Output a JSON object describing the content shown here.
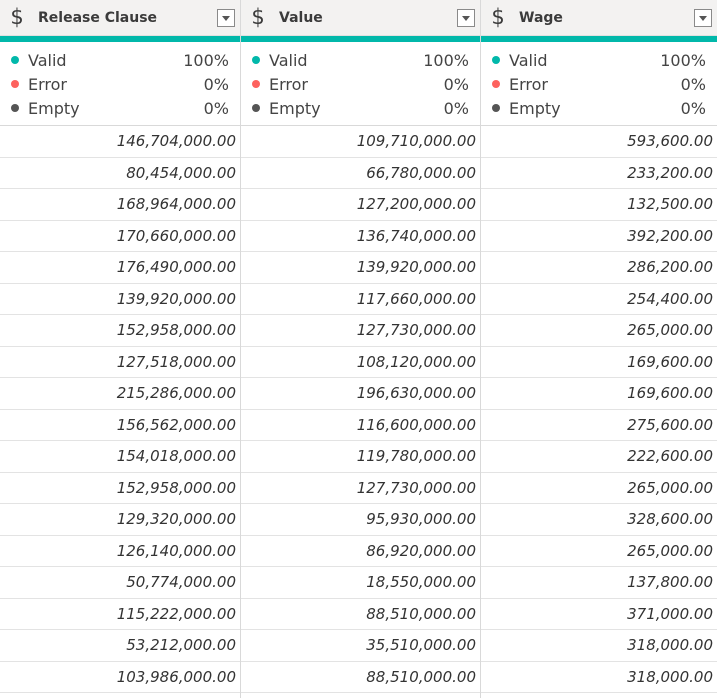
{
  "quality_colors": {
    "valid": "#01b8aa",
    "error": "#fd625e",
    "empty": "#555555"
  },
  "columns": [
    {
      "icon": "$",
      "icon_name": "currency-icon",
      "title": "Release Clause",
      "quality": {
        "valid_label": "Valid",
        "valid_pct": "100%",
        "error_label": "Error",
        "error_pct": "0%",
        "empty_label": "Empty",
        "empty_pct": "0%"
      },
      "rows": [
        "146,704,000.00",
        "80,454,000.00",
        "168,964,000.00",
        "170,660,000.00",
        "176,490,000.00",
        "139,920,000.00",
        "152,958,000.00",
        "127,518,000.00",
        "215,286,000.00",
        "156,562,000.00",
        "154,018,000.00",
        "152,958,000.00",
        "129,320,000.00",
        "126,140,000.00",
        "50,774,000.00",
        "115,222,000.00",
        "53,212,000.00",
        "103,986,000.00"
      ]
    },
    {
      "icon": "$",
      "icon_name": "currency-icon",
      "title": "Value",
      "quality": {
        "valid_label": "Valid",
        "valid_pct": "100%",
        "error_label": "Error",
        "error_pct": "0%",
        "empty_label": "Empty",
        "empty_pct": "0%"
      },
      "rows": [
        "109,710,000.00",
        "66,780,000.00",
        "127,200,000.00",
        "136,740,000.00",
        "139,920,000.00",
        "117,660,000.00",
        "127,730,000.00",
        "108,120,000.00",
        "196,630,000.00",
        "116,600,000.00",
        "119,780,000.00",
        "127,730,000.00",
        "95,930,000.00",
        "86,920,000.00",
        "18,550,000.00",
        "88,510,000.00",
        "35,510,000.00",
        "88,510,000.00"
      ]
    },
    {
      "icon": "$",
      "icon_name": "currency-icon",
      "title": "Wage",
      "quality": {
        "valid_label": "Valid",
        "valid_pct": "100%",
        "error_label": "Error",
        "error_pct": "0%",
        "empty_label": "Empty",
        "empty_pct": "0%"
      },
      "rows": [
        "593,600.00",
        "233,200.00",
        "132,500.00",
        "392,200.00",
        "286,200.00",
        "254,400.00",
        "265,000.00",
        "169,600.00",
        "169,600.00",
        "275,600.00",
        "222,600.00",
        "265,000.00",
        "328,600.00",
        "265,000.00",
        "137,800.00",
        "371,000.00",
        "318,000.00",
        "318,000.00"
      ]
    }
  ]
}
